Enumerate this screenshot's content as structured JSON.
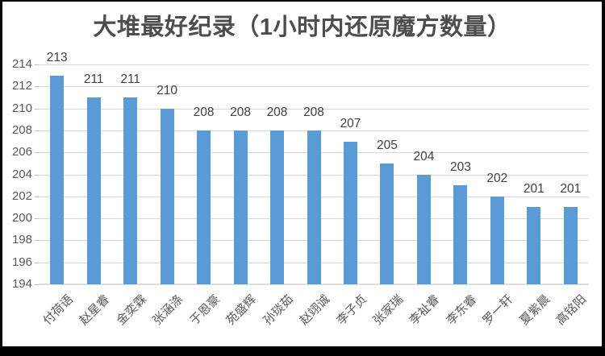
{
  "window": {
    "frame_background": "#000000",
    "canvas_background": "#ffffff"
  },
  "chart_data": {
    "type": "bar",
    "title": "大堆最好纪录（1小时内还原魔方数量）",
    "categories": [
      "付荷语",
      "赵星睿",
      "金奕霖",
      "张涵涤",
      "于恩豪",
      "苑盛辉",
      "孙琰茹",
      "赵翊诚",
      "李子贞",
      "张家瑞",
      "李祉睿",
      "李东睿",
      "罗一轩",
      "夏紫晨",
      "高铭阳"
    ],
    "values": [
      213,
      211,
      211,
      210,
      208,
      208,
      208,
      208,
      207,
      205,
      204,
      203,
      202,
      201,
      201
    ],
    "data_labels_shown": true,
    "xlabel": "",
    "ylabel": "",
    "ylim": [
      194,
      214
    ],
    "ytick_step": 2,
    "ytick_labels": [
      "194",
      "196",
      "198",
      "200",
      "202",
      "204",
      "206",
      "208",
      "210",
      "212",
      "214"
    ],
    "grid": true,
    "legend_position": "none",
    "x_label_rotation_deg": 45,
    "colors": {
      "bar": "#5B9BD5",
      "title_text": "#4d4d4d",
      "axis_text": "#595959",
      "data_label_text": "#404040",
      "gridline": "#d9d9d9",
      "axis_line": "#dcdcdc"
    }
  }
}
